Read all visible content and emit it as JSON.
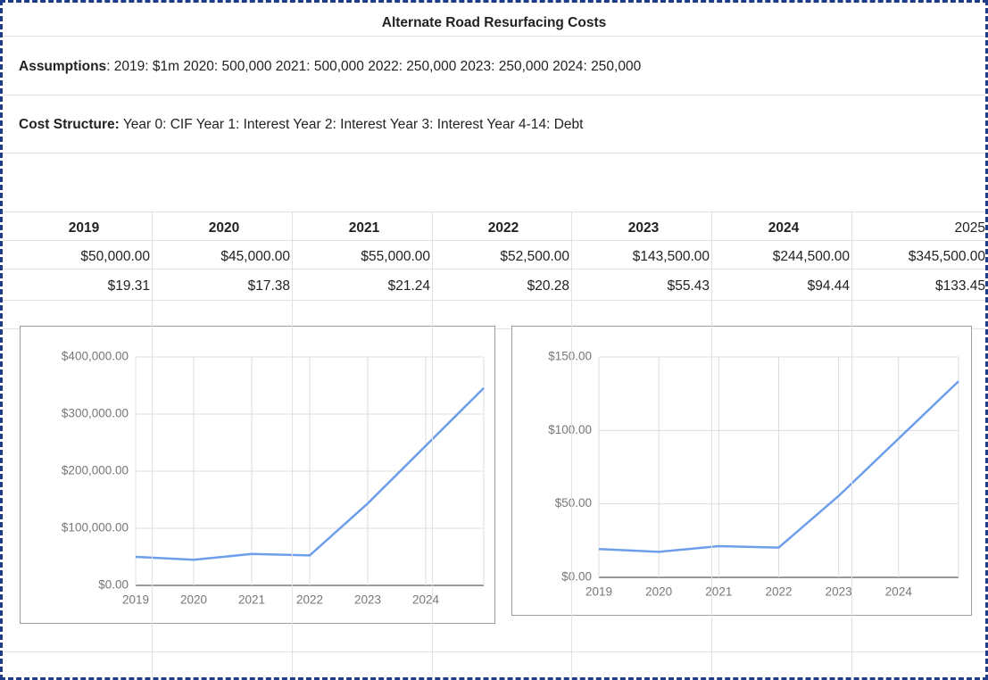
{
  "sheet": {
    "title": "Alternate Road Resurfacing Costs",
    "assumptions": {
      "label": "Assumptions",
      "text": ": 2019: $1m 2020: 500,000 2021: 500,000 2022: 250,000 2023: 250,000 2024: 250,000"
    },
    "cost_structure": {
      "label": "Cost Structure:",
      "text": " Year 0: CIF Year 1: Interest Year 2: Interest Year 3: Interest Year 4-14: Debt"
    },
    "table": {
      "header": [
        "2019",
        "2020",
        "2021",
        "2022",
        "2023",
        "2024",
        "2025"
      ],
      "rows": [
        [
          "$50,000.00",
          "$45,000.00",
          "$55,000.00",
          "$52,500.00",
          "$143,500.00",
          "$244,500.00",
          "$345,500.00"
        ],
        [
          "$19.31",
          "$17.38",
          "$21.24",
          "$20.28",
          "$55.43",
          "$94.44",
          "$133.45"
        ]
      ]
    }
  },
  "chart_data": [
    {
      "type": "line",
      "categories": [
        "2019",
        "2020",
        "2021",
        "2022",
        "2023",
        "2024",
        null
      ],
      "values": [
        50000,
        45000,
        55000,
        52500,
        143500,
        244500,
        345500
      ],
      "color": "#6d9eeb",
      "ylim": [
        0,
        400000
      ],
      "yticks": [
        {
          "value": 0,
          "label": "$0.00"
        },
        {
          "value": 100000,
          "label": "$100,000.00"
        },
        {
          "value": 200000,
          "label": "$200,000.00"
        },
        {
          "value": 300000,
          "label": "$300,000.00"
        },
        {
          "value": 400000,
          "label": "$400,000.00"
        }
      ],
      "grid": true
    },
    {
      "type": "line",
      "categories": [
        "2019",
        "2020",
        "2021",
        "2022",
        "2023",
        "2024",
        null
      ],
      "values": [
        19.31,
        17.38,
        21.24,
        20.28,
        55.43,
        94.44,
        133.45
      ],
      "color": "#6d9eeb",
      "ylim": [
        0,
        150
      ],
      "yticks": [
        {
          "value": 0,
          "label": "$0.00"
        },
        {
          "value": 50,
          "label": "$50.00"
        },
        {
          "value": 100,
          "label": "$100.00"
        },
        {
          "value": 150,
          "label": "$150.00"
        }
      ],
      "grid": true
    }
  ]
}
